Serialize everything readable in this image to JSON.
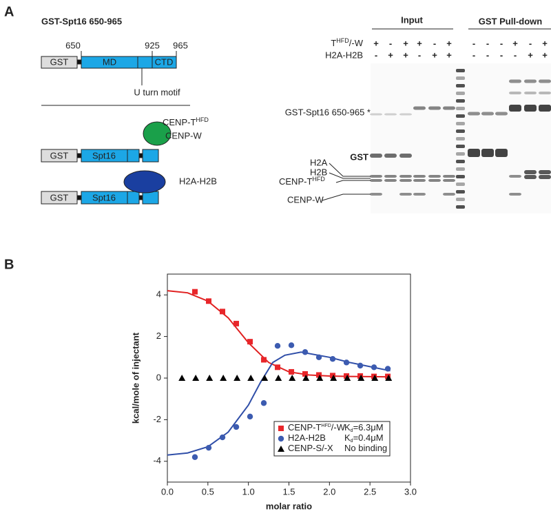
{
  "panel_a": {
    "label": "A",
    "title": "GST-Spt16 650-965",
    "residues": [
      "650",
      "925",
      "965"
    ],
    "construct_1": {
      "gst": "GST",
      "md": "MD",
      "ctd": "CTD",
      "motif": "U turn motif"
    },
    "construct_2": {
      "gst": "GST",
      "spt16": "Spt16",
      "partner_parts": [
        "CENP-T",
        "HFD"
      ],
      "partner_2": "CENP-W"
    },
    "construct_3": {
      "gst": "GST",
      "spt16": "Spt16",
      "partner": "H2A-H2B"
    },
    "gel": {
      "input": "Input",
      "pulldown": "GST Pull-down",
      "row_1_parts": [
        "T",
        "HFD",
        "/-W"
      ],
      "row_2": "H2A-H2B",
      "signs": [
        [
          "+",
          "-",
          "+",
          "+",
          "-",
          "+",
          "-",
          "-",
          "-",
          "+",
          "-",
          "+"
        ],
        [
          "-",
          "+",
          "+",
          "-",
          "+",
          "+",
          "-",
          "-",
          "-",
          "-",
          "+",
          "+"
        ]
      ],
      "band_labels": {
        "gst_spt16": "GST-Spt16 650-965 *",
        "gst": "GST",
        "h2a": "H2A",
        "h2b": "H2B",
        "cenp_t_parts": [
          "CENP-T",
          "HFD"
        ],
        "cenp_w": "CENP-W"
      }
    }
  },
  "panel_b": {
    "label": "B"
  },
  "chart_data": {
    "type": "scatter",
    "x_label": "molar ratio",
    "y_label": "kcal/mole of injectant",
    "xlim": [
      0,
      3
    ],
    "ylim": [
      -5,
      5
    ],
    "xticks": [
      {
        "value": 0,
        "label": "0.0"
      },
      0.5,
      {
        "value": 1,
        "label": "1.0"
      },
      1.5,
      {
        "value": 2,
        "label": "2.0"
      },
      2.5,
      {
        "value": 3,
        "label": "3.0"
      }
    ],
    "yticks": [
      -4,
      -2,
      0,
      2,
      4
    ],
    "series": [
      {
        "name_parts": [
          "CENP-T",
          "HFD",
          "/-W"
        ],
        "kd_parts": [
          "K",
          "d",
          "=6.3μM"
        ],
        "color": "#e8262a",
        "marker": "square",
        "x": [
          0.34,
          0.51,
          0.68,
          0.85,
          1.02,
          1.19,
          1.36,
          1.53,
          1.7,
          1.87,
          2.04,
          2.21,
          2.38,
          2.55,
          2.72
        ],
        "values": [
          4.15,
          3.7,
          3.2,
          2.62,
          1.75,
          0.88,
          0.52,
          0.3,
          0.2,
          0.15,
          0.12,
          0.1,
          0.1,
          0.08,
          0.08
        ]
      },
      {
        "name_parts": [
          "H2A-H2B"
        ],
        "kd_parts": [
          "K",
          "d",
          "=0.4μM"
        ],
        "color": "#3c5bb0",
        "marker": "circle",
        "x": [
          0.34,
          0.51,
          0.68,
          0.85,
          1.02,
          1.19,
          1.36,
          1.53,
          1.7,
          1.87,
          2.04,
          2.21,
          2.38,
          2.55,
          2.72
        ],
        "values": [
          -3.8,
          -3.35,
          -2.85,
          -2.35,
          -1.85,
          -1.2,
          1.55,
          1.58,
          1.25,
          1.0,
          0.92,
          0.75,
          0.6,
          0.52,
          0.45
        ]
      },
      {
        "name_parts": [
          "CENP-S/-X"
        ],
        "kd_parts": [
          "No binding"
        ],
        "color": "#000000",
        "marker": "triangle",
        "x": [
          0.18,
          0.35,
          0.52,
          0.69,
          0.86,
          1.03,
          1.2,
          1.37,
          1.54,
          1.71,
          1.88,
          2.05,
          2.22,
          2.39,
          2.56,
          2.73
        ],
        "values": [
          0,
          0,
          0,
          0,
          0,
          0,
          0,
          0,
          0,
          0,
          0,
          0,
          0,
          0,
          0,
          0
        ]
      }
    ],
    "fits": [
      {
        "color": "#e02020",
        "x": [
          0,
          0.25,
          0.5,
          0.75,
          1.0,
          1.25,
          1.5,
          1.75,
          2.0,
          2.25,
          2.5,
          2.75
        ],
        "values": [
          4.2,
          4.1,
          3.7,
          2.9,
          1.7,
          0.75,
          0.3,
          0.15,
          0.1,
          0.08,
          0.07,
          0.06
        ]
      },
      {
        "color": "#2f4ea8",
        "x": [
          0,
          0.25,
          0.5,
          0.75,
          1.0,
          1.15,
          1.3,
          1.45,
          1.65,
          2.0,
          2.25,
          2.5,
          2.75
        ],
        "values": [
          -3.7,
          -3.6,
          -3.3,
          -2.6,
          -1.3,
          -0.2,
          0.75,
          1.1,
          1.25,
          1.0,
          0.75,
          0.55,
          0.35
        ]
      }
    ]
  }
}
